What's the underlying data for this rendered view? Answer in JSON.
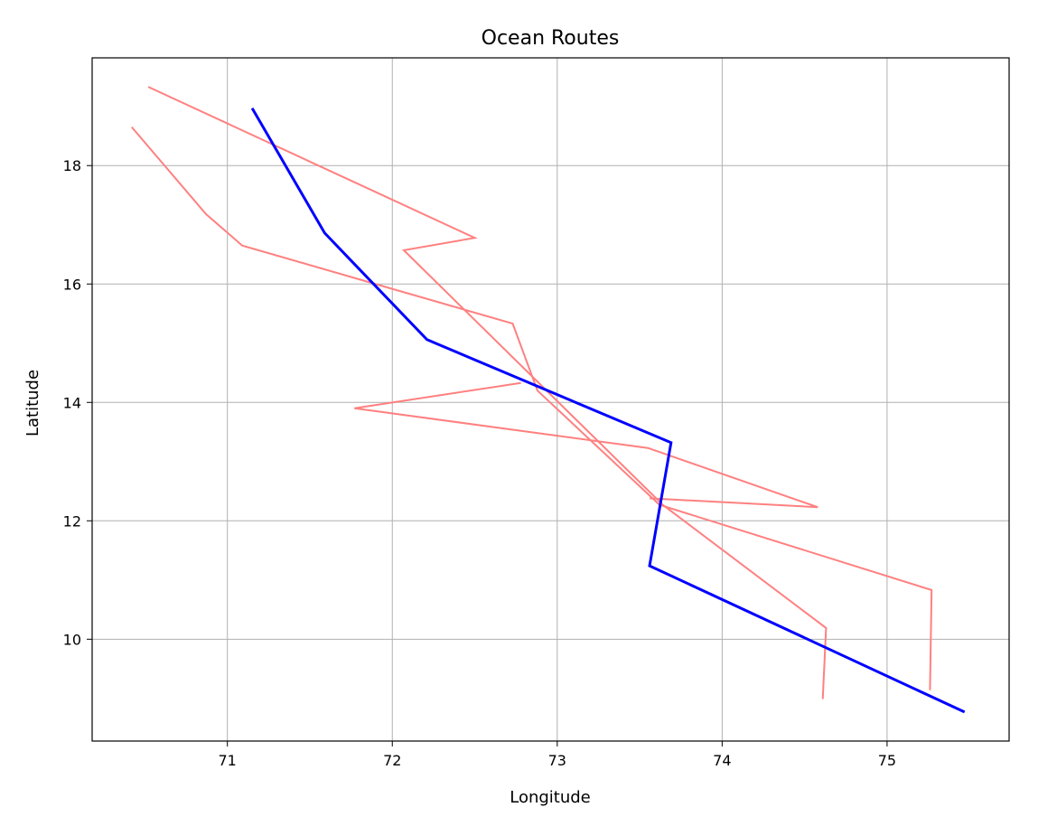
{
  "chart_data": {
    "type": "line",
    "title": "Ocean Routes",
    "xlabel": "Longitude",
    "ylabel": "Latitude",
    "xlim": [
      70.18,
      75.74
    ],
    "ylim": [
      8.28,
      19.82
    ],
    "xticks": [
      71,
      72,
      73,
      74,
      75
    ],
    "yticks": [
      10,
      12,
      14,
      16,
      18
    ],
    "grid": true,
    "series": [
      {
        "color": "#ff8080",
        "width": 2,
        "x": [
          70.52,
          72.5,
          72.07,
          73.64,
          74.63,
          74.61
        ],
        "y": [
          19.33,
          16.78,
          16.57,
          12.27,
          10.19,
          8.99
        ]
      },
      {
        "color": "#ff8080",
        "width": 2,
        "x": [
          70.42,
          70.87,
          71.09,
          72.73,
          72.88,
          73.62,
          75.27,
          75.26
        ],
        "y": [
          18.65,
          17.18,
          16.65,
          15.33,
          14.2,
          12.27,
          10.83,
          9.14
        ]
      },
      {
        "color": "#ff8080",
        "width": 2,
        "x": [
          72.78,
          71.77,
          73.55,
          74.58,
          73.56
        ],
        "y": [
          14.33,
          13.9,
          13.23,
          12.23,
          12.38
        ]
      },
      {
        "color": "#0000ff",
        "width": 3,
        "x": [
          71.15,
          71.59,
          72.21,
          73.69,
          73.56,
          75.47
        ],
        "y": [
          18.97,
          16.86,
          15.06,
          13.32,
          11.24,
          8.77
        ]
      }
    ]
  }
}
